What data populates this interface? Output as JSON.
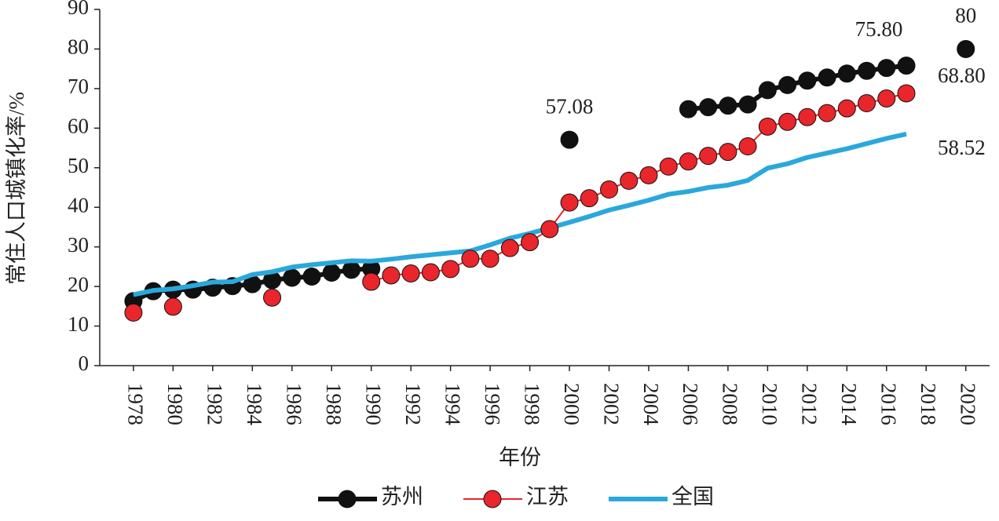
{
  "chart_data": {
    "type": "line",
    "x_label": "年份",
    "y_label": "常住人口城镇化率/%",
    "x": [
      1978,
      1979,
      1980,
      1981,
      1982,
      1983,
      1984,
      1985,
      1986,
      1987,
      1988,
      1989,
      1990,
      1991,
      1992,
      1993,
      1994,
      1995,
      1996,
      1997,
      1998,
      1999,
      2000,
      2001,
      2002,
      2003,
      2004,
      2005,
      2006,
      2007,
      2008,
      2009,
      2010,
      2011,
      2012,
      2013,
      2014,
      2015,
      2016,
      2017,
      2018,
      2019,
      2020
    ],
    "series": [
      {
        "name": "苏州",
        "color": "#111111",
        "marker": true,
        "line_width": 6,
        "values": [
          16.3,
          18.8,
          19.2,
          19.2,
          19.7,
          20.1,
          20.6,
          21.6,
          22.2,
          22.5,
          23.5,
          24.2,
          24.5,
          null,
          null,
          null,
          null,
          null,
          null,
          null,
          null,
          null,
          57.08,
          null,
          null,
          null,
          null,
          null,
          64.8,
          65.3,
          65.7,
          66.0,
          69.6,
          70.9,
          72.0,
          72.8,
          73.8,
          74.5,
          75.2,
          75.8,
          null,
          null,
          80
        ],
        "value_labels": [
          null,
          null,
          null,
          null,
          null,
          null,
          null,
          null,
          null,
          null,
          null,
          null,
          null,
          null,
          null,
          null,
          null,
          null,
          null,
          null,
          null,
          null,
          "57.08",
          null,
          null,
          null,
          null,
          null,
          null,
          null,
          null,
          null,
          null,
          null,
          null,
          null,
          null,
          null,
          null,
          "75.80",
          null,
          null,
          "80"
        ]
      },
      {
        "name": "全国",
        "color": "#2aa8dc",
        "marker": false,
        "line_width": 6,
        "values": [
          17.92,
          19.0,
          19.4,
          20.2,
          21.1,
          21.2,
          23.0,
          23.7,
          24.9,
          25.5,
          26.0,
          26.5,
          26.4,
          26.9,
          27.5,
          28.0,
          28.5,
          29.0,
          30.5,
          32.2,
          33.4,
          34.8,
          36.2,
          37.7,
          39.3,
          40.5,
          41.8,
          43.3,
          44.0,
          45.0,
          45.6,
          46.8,
          49.9,
          51.0,
          52.6,
          53.7,
          54.8,
          56.1,
          57.4,
          58.52,
          null,
          null,
          null
        ],
        "value_labels": [
          null,
          null,
          null,
          null,
          null,
          null,
          null,
          null,
          null,
          null,
          null,
          null,
          null,
          null,
          null,
          null,
          null,
          null,
          null,
          null,
          null,
          null,
          null,
          null,
          null,
          null,
          null,
          null,
          null,
          null,
          null,
          null,
          null,
          null,
          null,
          null,
          null,
          null,
          null,
          "58.52",
          null,
          null,
          null
        ]
      },
      {
        "name": "江苏",
        "color": "#e8262b",
        "marker": true,
        "line_width": 2,
        "values": [
          13.4,
          null,
          14.9,
          null,
          null,
          null,
          null,
          17.2,
          null,
          null,
          null,
          null,
          21.2,
          22.8,
          23.3,
          23.6,
          24.4,
          27.0,
          27.0,
          29.7,
          31.2,
          34.5,
          41.2,
          42.3,
          44.5,
          46.7,
          48.1,
          50.3,
          51.6,
          53.0,
          54.0,
          55.4,
          60.4,
          61.6,
          62.8,
          63.8,
          65.0,
          66.3,
          67.5,
          68.8,
          null,
          null,
          null
        ],
        "value_labels": [
          null,
          null,
          null,
          null,
          null,
          null,
          null,
          null,
          null,
          null,
          null,
          null,
          null,
          null,
          null,
          null,
          null,
          null,
          null,
          null,
          null,
          null,
          null,
          null,
          null,
          null,
          null,
          null,
          null,
          null,
          null,
          null,
          null,
          null,
          null,
          null,
          null,
          null,
          null,
          "68.80",
          null,
          null,
          null
        ]
      }
    ],
    "xlim": [
      1976.3,
      2021.2
    ],
    "xticks": [
      1978,
      1980,
      1982,
      1984,
      1986,
      1988,
      1990,
      1992,
      1994,
      1996,
      1998,
      2000,
      2002,
      2004,
      2006,
      2008,
      2010,
      2012,
      2014,
      2016,
      2018,
      2020
    ],
    "ylim": [
      0,
      90
    ],
    "yticks": [
      0,
      10,
      20,
      30,
      40,
      50,
      60,
      70,
      80,
      90
    ],
    "legend": "bottom"
  }
}
